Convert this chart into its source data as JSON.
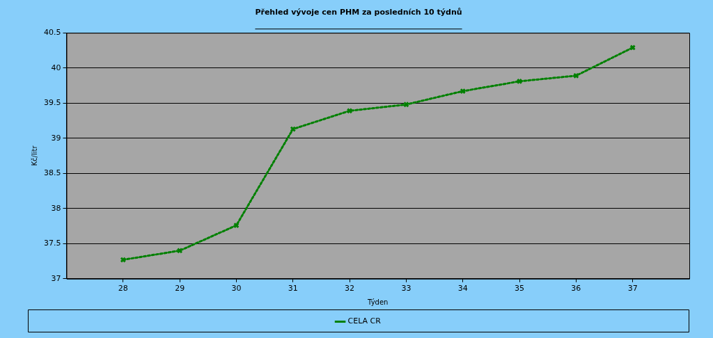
{
  "chart_data": {
    "type": "line",
    "title": "Přehled vývoje cen PHM za posledních 10 týdnů",
    "xlabel": "Týden",
    "ylabel": "Kč/litr",
    "x": [
      28,
      29,
      30,
      31,
      32,
      33,
      34,
      35,
      36,
      37
    ],
    "series": [
      {
        "name": "CELA CR",
        "color": "#008000",
        "values": [
          37.27,
          37.4,
          37.76,
          39.13,
          39.39,
          39.48,
          39.67,
          39.81,
          39.89,
          40.29
        ]
      }
    ],
    "xlim": [
      27,
      38
    ],
    "xticks": [
      28,
      29,
      30,
      31,
      32,
      33,
      34,
      35,
      36,
      37
    ],
    "ylim": [
      37,
      40.5
    ],
    "yticks": [
      37,
      37.5,
      38,
      38.5,
      39,
      39.5,
      40,
      40.5
    ],
    "grid": "y",
    "legend": "bottom",
    "marker": "cross",
    "line_style": "dotted"
  }
}
